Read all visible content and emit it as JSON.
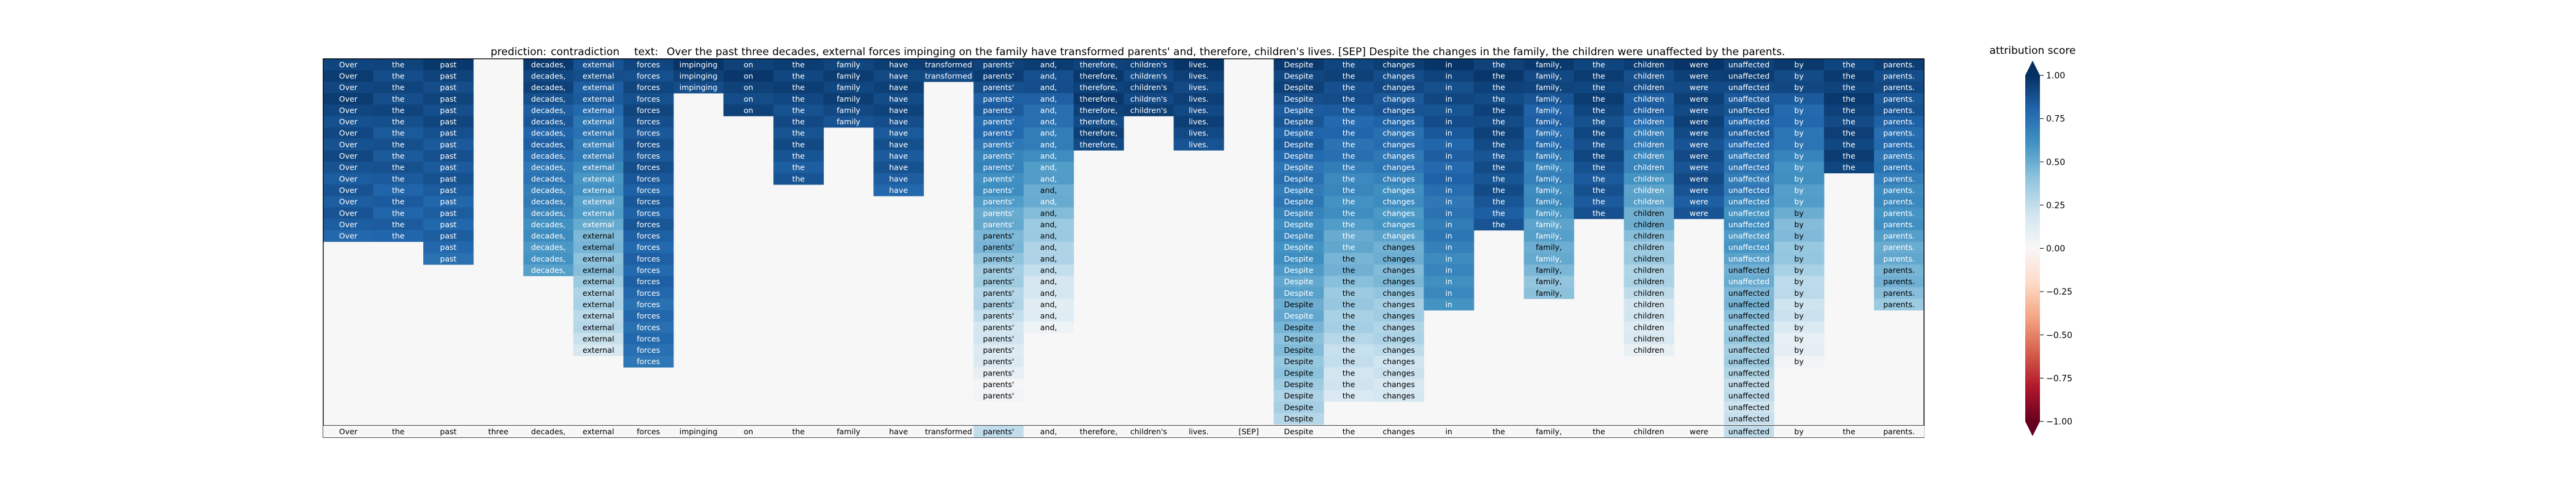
{
  "chart_data": {
    "type": "heatmap",
    "title": {
      "prediction_label": "prediction:",
      "prediction_value": "contradiction",
      "text_label": "text:",
      "text_value": "Over the past three decades, external forces impinging on the family have transformed parents' and, therefore, children's lives. [SEP] Despite the changes in the family, the children were unaffected by the parents."
    },
    "tokens": [
      "Over",
      "the",
      "past",
      "three",
      "decades,",
      "external",
      "forces",
      "impinging",
      "on",
      "the",
      "family",
      "have",
      "transformed",
      "parents'",
      "and,",
      "therefore,",
      "children's",
      "lives.",
      "[SEP]",
      "Despite",
      "the",
      "changes",
      "in",
      "the",
      "family,",
      "the",
      "children",
      "were",
      "unaffected",
      "by",
      "the",
      "parents."
    ],
    "colorbar": {
      "label": "attribution score",
      "range": [
        -1.0,
        1.0
      ],
      "ticks": [
        1.0,
        0.75,
        0.5,
        0.25,
        0.0,
        -0.25,
        -0.5,
        -0.75,
        -1.0
      ],
      "tick_labels": [
        "1.00",
        "0.75",
        "0.50",
        "0.25",
        "0.00",
        "−0.25",
        "−0.50",
        "−0.75",
        "−1.00"
      ],
      "colors": [
        "#67001f",
        "#b2182b",
        "#d6604d",
        "#f4a582",
        "#fddbc7",
        "#f7f7f7",
        "#d1e5f0",
        "#92c5de",
        "#4393c3",
        "#2166ac",
        "#053061"
      ]
    },
    "grid": false,
    "legend": "right"
  }
}
